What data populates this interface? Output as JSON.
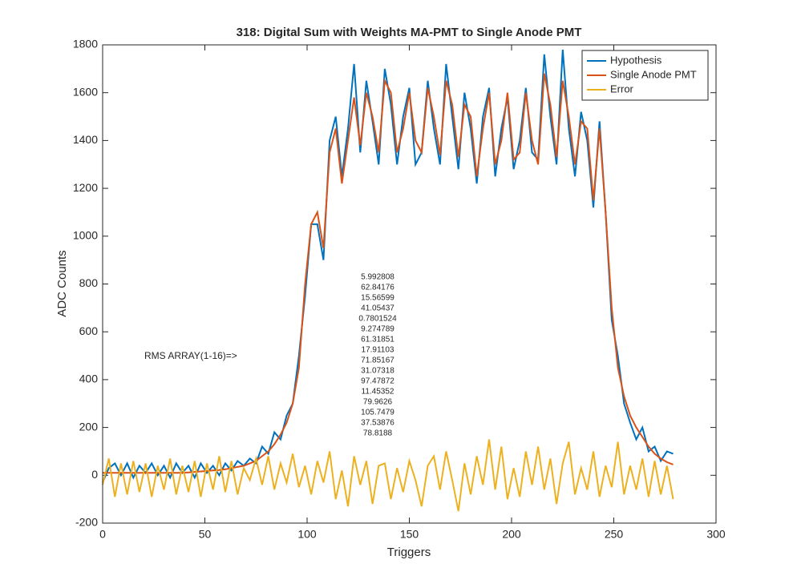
{
  "chart_data": {
    "type": "line",
    "title": "318: Digital Sum with Weights MA-PMT to Single Anode PMT",
    "x_label": "Triggers",
    "y_label": "ADC Counts",
    "xlim": [
      0,
      300
    ],
    "xticks": [
      0,
      50,
      100,
      150,
      200,
      250,
      300
    ],
    "ylim": [
      -200,
      1800
    ],
    "yticks": [
      -200,
      0,
      200,
      400,
      600,
      800,
      1000,
      1200,
      1400,
      1600,
      1800
    ],
    "legend": "northeast",
    "annotations": [
      "RMS ARRAY(1-16)=>",
      "5.992808",
      "62.84176",
      "15.56599",
      "41.05437",
      "0.7801524",
      "9.274789",
      "61.31851",
      "17.91103",
      "71.85167",
      "31.07318",
      "97.47872",
      "11.45352",
      "79.9626",
      "105.7479",
      "37.53876",
      "78.8188"
    ],
    "x": [
      0,
      3,
      6,
      9,
      12,
      15,
      18,
      21,
      24,
      27,
      30,
      33,
      36,
      39,
      42,
      45,
      48,
      51,
      54,
      57,
      60,
      63,
      66,
      69,
      72,
      75,
      78,
      81,
      84,
      87,
      90,
      93,
      96,
      99,
      102,
      105,
      108,
      111,
      114,
      117,
      120,
      123,
      126,
      129,
      132,
      135,
      138,
      141,
      144,
      147,
      150,
      153,
      156,
      159,
      162,
      165,
      168,
      171,
      174,
      177,
      180,
      183,
      186,
      189,
      192,
      195,
      198,
      201,
      204,
      207,
      210,
      213,
      216,
      219,
      222,
      225,
      228,
      231,
      234,
      237,
      240,
      243,
      246,
      249,
      252,
      255,
      258,
      261,
      264,
      267,
      270,
      273,
      276,
      279
    ],
    "series": [
      {
        "name": "Hypothesis",
        "color": "#0072bd",
        "values": [
          -30,
          30,
          50,
          0,
          50,
          -10,
          40,
          10,
          50,
          0,
          40,
          -10,
          50,
          10,
          40,
          -10,
          50,
          10,
          40,
          0,
          50,
          20,
          60,
          40,
          70,
          50,
          120,
          90,
          180,
          150,
          250,
          300,
          500,
          750,
          1050,
          1050,
          900,
          1400,
          1500,
          1250,
          1450,
          1720,
          1350,
          1650,
          1480,
          1300,
          1700,
          1550,
          1300,
          1500,
          1620,
          1300,
          1350,
          1650,
          1450,
          1300,
          1720,
          1500,
          1280,
          1600,
          1450,
          1220,
          1500,
          1620,
          1250,
          1450,
          1580,
          1280,
          1400,
          1620,
          1350,
          1320,
          1760,
          1500,
          1300,
          1780,
          1450,
          1250,
          1520,
          1400,
          1120,
          1480,
          1100,
          650,
          500,
          300,
          220,
          150,
          200,
          100,
          120,
          60,
          100,
          90
        ]
      },
      {
        "name": "Single Anode PMT",
        "color": "#d95319",
        "values": [
          10,
          10,
          10,
          10,
          10,
          10,
          10,
          10,
          10,
          10,
          10,
          10,
          10,
          10,
          12,
          14,
          16,
          18,
          20,
          22,
          25,
          30,
          35,
          40,
          50,
          60,
          80,
          100,
          130,
          170,
          220,
          300,
          450,
          800,
          1050,
          1100,
          950,
          1350,
          1450,
          1220,
          1400,
          1580,
          1380,
          1600,
          1500,
          1350,
          1650,
          1600,
          1350,
          1450,
          1600,
          1400,
          1350,
          1620,
          1500,
          1340,
          1650,
          1550,
          1330,
          1550,
          1500,
          1250,
          1450,
          1600,
          1300,
          1400,
          1600,
          1320,
          1350,
          1600,
          1400,
          1300,
          1680,
          1550,
          1330,
          1650,
          1500,
          1300,
          1480,
          1450,
          1150,
          1450,
          1100,
          700,
          450,
          330,
          250,
          200,
          160,
          120,
          90,
          70,
          55,
          45
        ]
      },
      {
        "name": "Error",
        "color": "#edb120",
        "values": [
          -40,
          70,
          -90,
          50,
          -80,
          60,
          -70,
          50,
          -90,
          40,
          -60,
          70,
          -80,
          40,
          -70,
          60,
          -90,
          50,
          -60,
          80,
          -70,
          60,
          -80,
          30,
          -20,
          70,
          -40,
          80,
          -60,
          50,
          -30,
          90,
          -50,
          40,
          -80,
          60,
          -30,
          100,
          -100,
          20,
          -130,
          80,
          -40,
          60,
          -120,
          40,
          50,
          -100,
          30,
          -70,
          60,
          -20,
          -130,
          40,
          80,
          -60,
          100,
          -20,
          -150,
          50,
          -80,
          80,
          -40,
          150,
          -60,
          120,
          -100,
          30,
          -90,
          100,
          -40,
          120,
          -60,
          70,
          -120,
          50,
          140,
          -80,
          30,
          -60,
          100,
          -90,
          40,
          -50,
          140,
          -80,
          40,
          -60,
          70,
          -90,
          60,
          -80,
          40,
          -100
        ]
      }
    ]
  }
}
